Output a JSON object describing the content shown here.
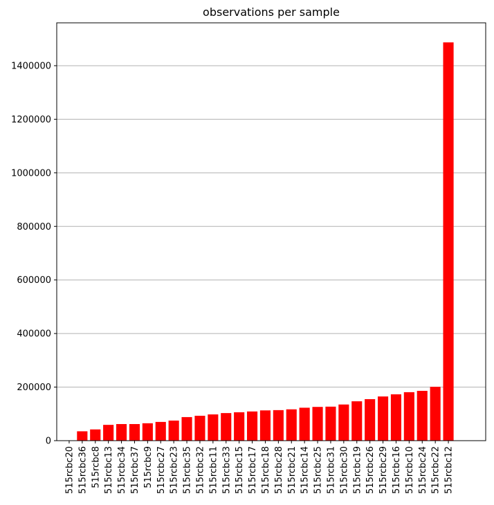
{
  "chart_data": {
    "type": "bar",
    "title": "observations per sample",
    "xlabel": "",
    "ylabel": "",
    "categories": [
      "515rcbc20",
      "515rcbc36",
      "515rcbc8",
      "515rcbc13",
      "515rcbc34",
      "515rcbc37",
      "515rcbc9",
      "515rcbc27",
      "515rcbc23",
      "515rcbc35",
      "515rcbc32",
      "515rcbc11",
      "515rcbc33",
      "515rcbc15",
      "515rcbc17",
      "515rcbc18",
      "515rcbc28",
      "515rcbc21",
      "515rcbc14",
      "515rcbc25",
      "515rcbc31",
      "515rcbc30",
      "515rcbc19",
      "515rcbc26",
      "515rcbc29",
      "515rcbc16",
      "515rcbc10",
      "515rcbc24",
      "515rcbc22",
      "515rcbc12"
    ],
    "values": [
      0,
      35000,
      42000,
      59000,
      62000,
      62000,
      65000,
      70000,
      75000,
      88000,
      93000,
      98000,
      103000,
      106000,
      109000,
      113000,
      114000,
      117000,
      123000,
      126000,
      127000,
      135000,
      147000,
      155000,
      165000,
      173000,
      181000,
      186000,
      201000,
      1487000
    ],
    "yticks": [
      "0",
      "200000",
      "400000",
      "600000",
      "800000",
      "1000000",
      "1200000",
      "1400000"
    ],
    "ylim": [
      0,
      1560000
    ],
    "grid": "y",
    "colors": {
      "bar": "#ff0000",
      "grid": "#b0b0b0",
      "axes": "#000000"
    }
  }
}
